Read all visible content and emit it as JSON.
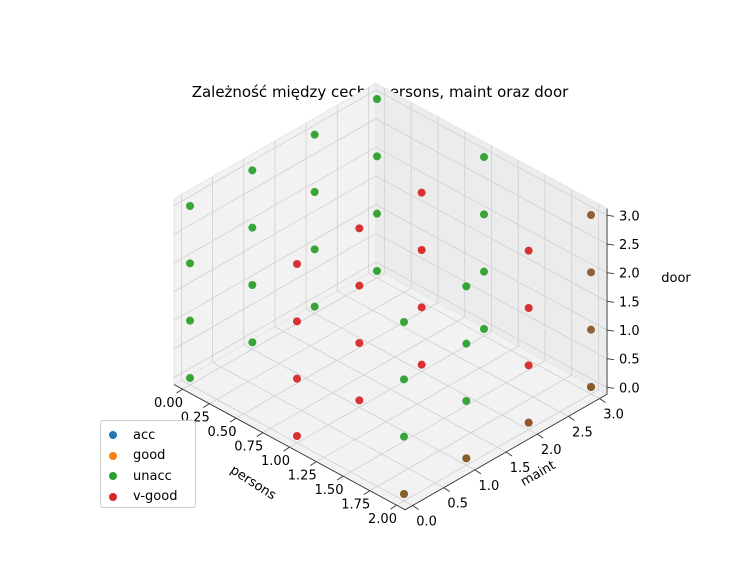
{
  "chart_data": {
    "type": "scatter",
    "projection": "3d",
    "title": "Zależność między cechą persons, maint oraz door",
    "xlabel": "persons",
    "ylabel": "maint",
    "zlabel": "door",
    "xlim": [
      0,
      2
    ],
    "ylim": [
      0,
      3
    ],
    "zlim": [
      0,
      3
    ],
    "x_ticks": [
      "0.00",
      "0.25",
      "0.50",
      "0.75",
      "1.00",
      "1.25",
      "1.50",
      "1.75",
      "2.00"
    ],
    "y_ticks": [
      "0.0",
      "0.5",
      "1.0",
      "1.5",
      "2.0",
      "2.5",
      "3.0"
    ],
    "z_ticks": [
      "0.0",
      "0.5",
      "1.0",
      "1.5",
      "2.0",
      "2.5",
      "3.0"
    ],
    "grid": true,
    "legend_position": "lower-left",
    "series": [
      {
        "name": "acc",
        "color": "#1f77b4",
        "points": []
      },
      {
        "name": "good",
        "color": "#ff7f0e",
        "points": []
      },
      {
        "name": "unacc",
        "color": "#2ca02c",
        "points": [
          [
            0,
            0,
            0
          ],
          [
            0,
            0,
            1
          ],
          [
            0,
            0,
            2
          ],
          [
            0,
            0,
            3
          ],
          [
            0,
            1,
            0
          ],
          [
            0,
            1,
            1
          ],
          [
            0,
            1,
            2
          ],
          [
            0,
            1,
            3
          ],
          [
            0,
            2,
            0
          ],
          [
            0,
            2,
            1
          ],
          [
            0,
            2,
            2
          ],
          [
            0,
            2,
            3
          ],
          [
            0,
            3,
            0
          ],
          [
            0,
            3,
            1
          ],
          [
            0,
            3,
            2
          ],
          [
            0,
            3,
            3
          ],
          [
            2,
            0,
            0
          ],
          [
            2,
            0,
            1
          ],
          [
            2,
            0,
            2
          ],
          [
            2,
            0,
            3
          ],
          [
            2,
            1,
            0
          ],
          [
            2,
            1,
            1
          ],
          [
            2,
            1,
            2
          ],
          [
            2,
            1,
            3
          ],
          [
            1,
            3,
            0
          ],
          [
            1,
            3,
            1
          ],
          [
            1,
            3,
            2
          ],
          [
            1,
            3,
            3
          ]
        ]
      },
      {
        "name": "v-good",
        "color": "#d62728",
        "points": [
          [
            1,
            0,
            0
          ],
          [
            1,
            0,
            1
          ],
          [
            1,
            0,
            2
          ],
          [
            1,
            0,
            3
          ],
          [
            1,
            1,
            0
          ],
          [
            1,
            1,
            1
          ],
          [
            1,
            1,
            2
          ],
          [
            1,
            1,
            3
          ],
          [
            1,
            2,
            0
          ],
          [
            1,
            2,
            1
          ],
          [
            1,
            2,
            2
          ],
          [
            1,
            2,
            3
          ],
          [
            2,
            2,
            0
          ],
          [
            2,
            2,
            1
          ],
          [
            2,
            2,
            2
          ],
          [
            2,
            2,
            3
          ]
        ]
      }
    ],
    "overlap_points": [
      [
        2,
        3,
        0
      ],
      [
        2,
        3,
        1
      ],
      [
        2,
        3,
        2
      ],
      [
        2,
        3,
        3
      ],
      [
        2,
        0,
        0
      ],
      [
        2,
        1,
        0
      ],
      [
        2,
        2,
        0
      ],
      [
        2,
        3,
        0
      ]
    ]
  }
}
